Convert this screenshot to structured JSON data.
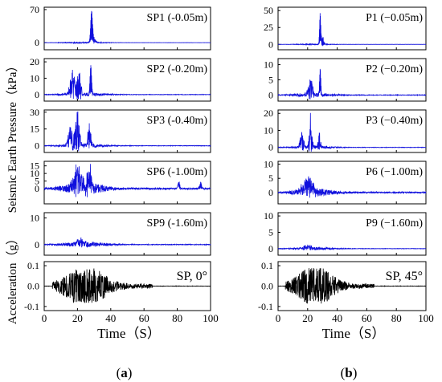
{
  "chart_data": [
    {
      "type": "line",
      "panel_label": "(a)",
      "y_label_upper": "Seismic Earth Pressure（kPa）",
      "y_label_lower": "Acceleration（g）",
      "x_label": "Time（S）",
      "x_ticks": [
        "0",
        "20",
        "40",
        "60",
        "80",
        "100"
      ],
      "xlim": [
        0,
        100
      ],
      "subplots": [
        {
          "label": "SP1 (-0.05m)",
          "ylim": [
            -15,
            75
          ],
          "yticks": [
            "0",
            "70"
          ],
          "color": "#1010dd",
          "bursts": [
            {
              "t": 28.5,
              "amp": 68,
              "width": 0.8
            },
            {
              "t": 30,
              "amp": 8,
              "width": 1.5
            }
          ],
          "noise": 1.2
        },
        {
          "label": "SP2 (-0.20m)",
          "ylim": [
            -4,
            22
          ],
          "yticks": [
            "0",
            "10",
            "20"
          ],
          "color": "#1010dd",
          "bursts": [
            {
              "t": 17,
              "amp": 12,
              "width": 2
            },
            {
              "t": 21,
              "amp": 13,
              "width": 1.5
            },
            {
              "t": 28,
              "amp": 18,
              "width": 0.7
            }
          ],
          "noise": 1.0
        },
        {
          "label": "SP3 (-0.40m)",
          "ylim": [
            -6,
            32
          ],
          "yticks": [
            "0",
            "15",
            "30"
          ],
          "color": "#1010dd",
          "bursts": [
            {
              "t": 16,
              "amp": 14,
              "width": 2
            },
            {
              "t": 20,
              "amp": 26,
              "width": 1.5
            },
            {
              "t": 27,
              "amp": 18,
              "width": 1.2
            }
          ],
          "noise": 1.5
        },
        {
          "label": "SP6 (-1.00m)",
          "ylim": [
            -10,
            18
          ],
          "yticks": [
            "0",
            "5",
            "10",
            "15"
          ],
          "color": "#1010dd",
          "bursts": [
            {
              "t": 20,
              "amp": 13,
              "width": 3
            },
            {
              "t": 27,
              "amp": 12,
              "width": 2
            },
            {
              "t": 81,
              "amp": 4,
              "width": 1
            },
            {
              "t": 94,
              "amp": 4,
              "width": 0.8
            }
          ],
          "noise": 3.5
        },
        {
          "label": "SP9 (-1.60m)",
          "ylim": [
            -4,
            12
          ],
          "yticks": [
            "0",
            "10"
          ],
          "color": "#1010dd",
          "bursts": [
            {
              "t": 22,
              "amp": 2,
              "width": 3
            }
          ],
          "noise": 0.9
        },
        {
          "label": "SP, 0°",
          "ylim": [
            -0.12,
            0.12
          ],
          "yticks": [
            "-0.1",
            "0.0",
            "0.1"
          ],
          "color": "#000000",
          "bursts": [
            {
              "t": 25,
              "amp": 0.1,
              "width": 12
            }
          ],
          "noise": 0.09,
          "is_acc": true
        }
      ]
    },
    {
      "type": "line",
      "panel_label": "(b)",
      "x_label": "Time（S）",
      "x_ticks": [
        "0",
        "20",
        "40",
        "60",
        "80",
        "100"
      ],
      "xlim": [
        0,
        100
      ],
      "subplots": [
        {
          "label": "P1 (−0.05m)",
          "ylim": [
            -8,
            55
          ],
          "yticks": [
            "0",
            "25",
            "50"
          ],
          "color": "#1010dd",
          "bursts": [
            {
              "t": 28.5,
              "amp": 45,
              "width": 0.6
            },
            {
              "t": 30,
              "amp": 10,
              "width": 1.2
            }
          ],
          "noise": 0.6
        },
        {
          "label": "P2 (−0.20m)",
          "ylim": [
            -2,
            12
          ],
          "yticks": [
            "0",
            "5",
            "10"
          ],
          "color": "#1010dd",
          "bursts": [
            {
              "t": 22,
              "amp": 4,
              "width": 2
            },
            {
              "t": 28.5,
              "amp": 9,
              "width": 0.6
            }
          ],
          "noise": 0.6
        },
        {
          "label": "P3 (−0.40m)",
          "ylim": [
            -3,
            22
          ],
          "yticks": [
            "0",
            "10",
            "20"
          ],
          "color": "#1010dd",
          "bursts": [
            {
              "t": 16,
              "amp": 8,
              "width": 1.5
            },
            {
              "t": 22,
              "amp": 17,
              "width": 1.2
            },
            {
              "t": 28,
              "amp": 8,
              "width": 1.0
            }
          ],
          "noise": 0.8
        },
        {
          "label": "P6 (−1.00m)",
          "ylim": [
            -4,
            11
          ],
          "yticks": [
            "0",
            "5",
            "10"
          ],
          "color": "#1010dd",
          "bursts": [
            {
              "t": 20,
              "amp": 4,
              "width": 5
            }
          ],
          "noise": 1.4
        },
        {
          "label": "P9 (−1.60m)",
          "ylim": [
            -2,
            11
          ],
          "yticks": [
            "0",
            "5",
            "10"
          ],
          "color": "#1010dd",
          "bursts": [
            {
              "t": 20,
              "amp": 0.8,
              "width": 4
            }
          ],
          "noise": 0.4
        },
        {
          "label": "SP, 45°",
          "ylim": [
            -0.12,
            0.12
          ],
          "yticks": [
            "-0.1",
            "0.0",
            "0.1"
          ],
          "color": "#000000",
          "bursts": [
            {
              "t": 25,
              "amp": 0.1,
              "width": 12
            }
          ],
          "noise": 0.09,
          "is_acc": true
        }
      ]
    }
  ]
}
